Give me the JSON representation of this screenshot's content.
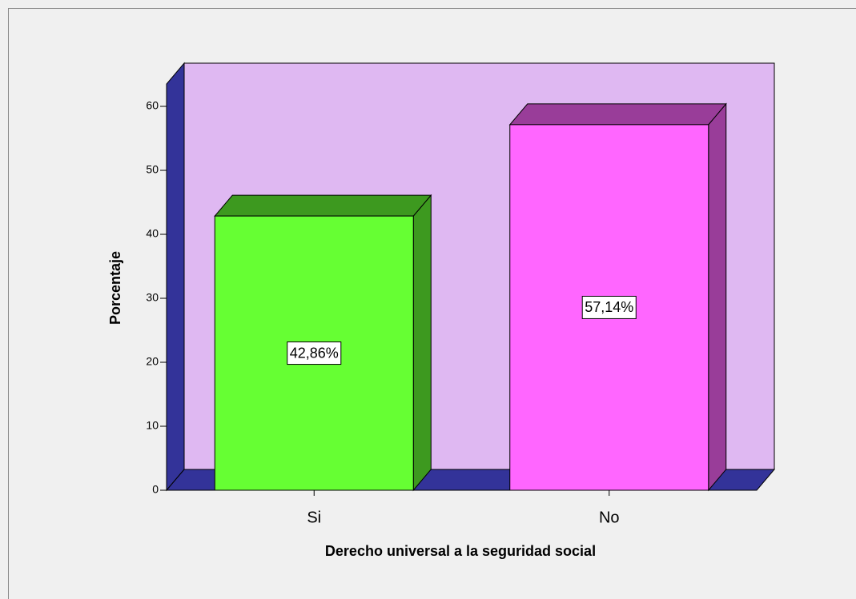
{
  "chart_data": {
    "type": "bar3d",
    "x_label": "Derecho universal a la seguridad social",
    "y_label": "Porcentaje",
    "categories": [
      "Si",
      "No"
    ],
    "values": [
      42.86,
      57.14
    ],
    "value_labels": [
      "42,86%",
      "57,14%"
    ],
    "colors": [
      "#66ff33",
      "#ff66ff"
    ],
    "wall_color": "#dfb8f2",
    "floor_color": "#333399",
    "ylim": [
      0,
      63.5
    ],
    "yticks": [
      0,
      10,
      20,
      30,
      40,
      50,
      60
    ]
  }
}
